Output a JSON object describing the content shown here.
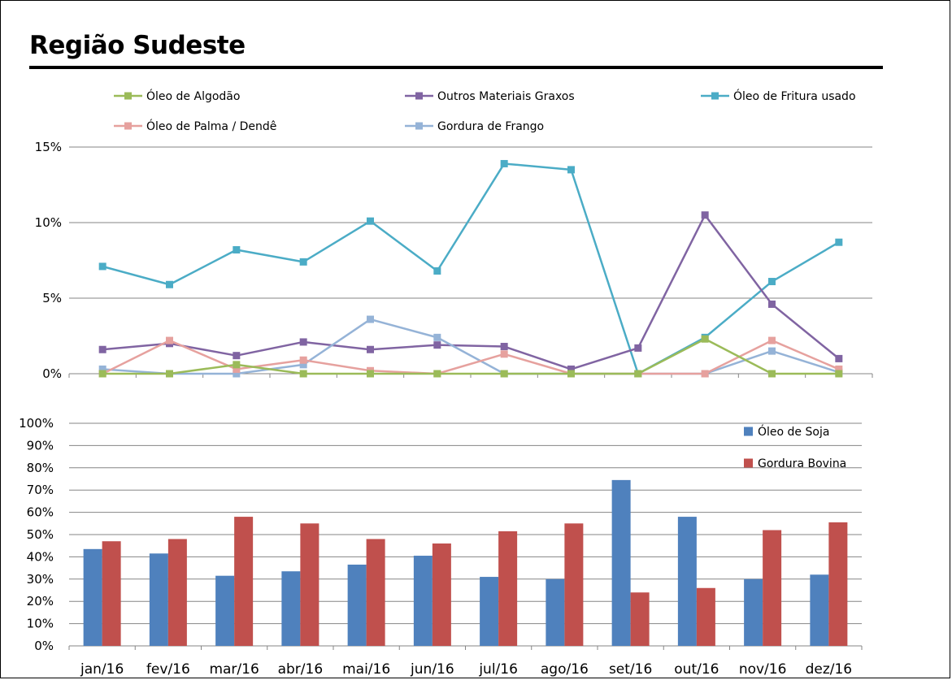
{
  "page": {
    "title": "Região Sudeste"
  },
  "chart_data": [
    {
      "type": "line",
      "categories": [
        "jan/16",
        "fev/16",
        "mar/16",
        "abr/16",
        "mai/16",
        "jun/16",
        "jul/16",
        "ago/16",
        "set/16",
        "out/16",
        "nov/16",
        "dez/16"
      ],
      "ylim": [
        0,
        15
      ],
      "yticks": [
        0,
        5,
        10,
        15
      ],
      "ytick_labels": [
        "0%",
        "5%",
        "10%",
        "15%"
      ],
      "grid": true,
      "legend_position": "top",
      "series": [
        {
          "name": "Óleo de Algodão",
          "color": "#9bbb59",
          "values": [
            0,
            0,
            0.6,
            0,
            0,
            0,
            0,
            0,
            0,
            2.3,
            0,
            0
          ]
        },
        {
          "name": "Outros Materiais Graxos",
          "color": "#8064a2",
          "values": [
            1.6,
            2.0,
            1.2,
            2.1,
            1.6,
            1.9,
            1.8,
            0.3,
            1.7,
            10.5,
            4.6,
            1.0
          ]
        },
        {
          "name": "Óleo de Fritura usado",
          "color": "#4bacc6",
          "values": [
            7.1,
            5.9,
            8.2,
            7.4,
            10.1,
            6.8,
            13.9,
            13.5,
            0,
            2.4,
            6.1,
            8.7
          ]
        },
        {
          "name": "Óleo de Palma / Dendê",
          "color": "#e6a19e",
          "values": [
            0,
            2.2,
            0.3,
            0.9,
            0.2,
            0,
            1.3,
            0,
            0,
            0,
            2.2,
            0.3
          ]
        },
        {
          "name": "Gordura de Frango",
          "color": "#95b3d7",
          "values": [
            0.3,
            0,
            0,
            0.6,
            3.6,
            2.4,
            0,
            0,
            0,
            0,
            1.5,
            0.1
          ]
        }
      ]
    },
    {
      "type": "bar",
      "categories": [
        "jan/16",
        "fev/16",
        "mar/16",
        "abr/16",
        "mai/16",
        "jun/16",
        "jul/16",
        "ago/16",
        "set/16",
        "out/16",
        "nov/16",
        "dez/16"
      ],
      "ylim": [
        0,
        100
      ],
      "yticks": [
        0,
        10,
        20,
        30,
        40,
        50,
        60,
        70,
        80,
        90,
        100
      ],
      "ytick_labels": [
        "0%",
        "10%",
        "20%",
        "30%",
        "40%",
        "50%",
        "60%",
        "70%",
        "80%",
        "90%",
        "100%"
      ],
      "grid": true,
      "legend_position": "top-right",
      "series": [
        {
          "name": "Óleo de Soja",
          "color": "#4f81bd",
          "values": [
            43.5,
            41.5,
            31.5,
            33.5,
            36.5,
            40.5,
            31,
            30,
            74.5,
            58,
            30,
            32
          ]
        },
        {
          "name": "Gordura Bovina",
          "color": "#c0504d",
          "values": [
            47,
            48,
            58,
            55,
            48,
            46,
            51.5,
            55,
            24,
            26,
            52,
            55.5
          ]
        }
      ]
    }
  ]
}
